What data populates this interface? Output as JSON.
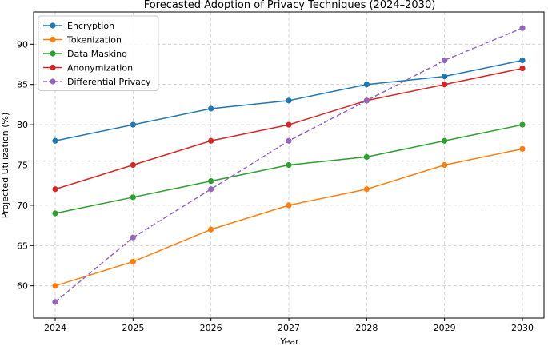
{
  "chart_data": {
    "type": "line",
    "title": "Forecasted Adoption of Privacy Techniques (2024–2030)",
    "xlabel": "Year",
    "ylabel": "Projected Utilization (%)",
    "categories": [
      "2024",
      "2025",
      "2026",
      "2027",
      "2028",
      "2029",
      "2030"
    ],
    "ylim": [
      56,
      94
    ],
    "yticks": [
      60,
      65,
      70,
      75,
      80,
      85,
      90
    ],
    "grid": true,
    "legend_position": "upper-left",
    "series": [
      {
        "name": "Encryption",
        "values": [
          78,
          80,
          82,
          83,
          85,
          86,
          88
        ],
        "color": "#1f77b4",
        "dashed": false
      },
      {
        "name": "Tokenization",
        "values": [
          60,
          63,
          67,
          70,
          72,
          75,
          77
        ],
        "color": "#ff7f0e",
        "dashed": false
      },
      {
        "name": "Data Masking",
        "values": [
          69,
          71,
          73,
          75,
          76,
          78,
          80
        ],
        "color": "#2ca02c",
        "dashed": false
      },
      {
        "name": "Anonymization",
        "values": [
          72,
          75,
          78,
          80,
          83,
          85,
          87
        ],
        "color": "#d62728",
        "dashed": false
      },
      {
        "name": "Differential Privacy",
        "values": [
          58,
          66,
          72,
          78,
          83,
          88,
          92
        ],
        "color": "#9467bd",
        "dashed": true
      }
    ]
  }
}
